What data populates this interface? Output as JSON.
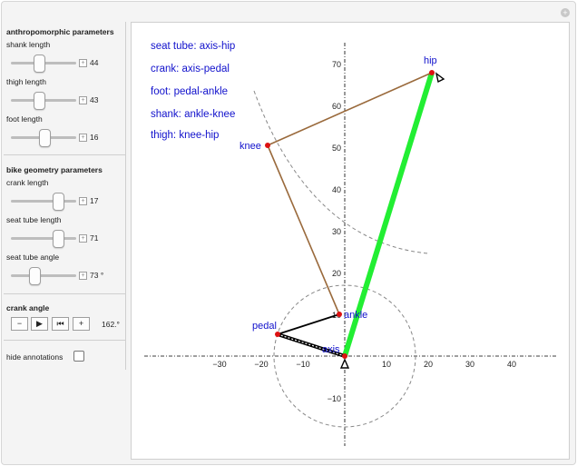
{
  "window": {
    "corner_button_icon": "plus-circle-icon"
  },
  "controls": {
    "anthropomorphic": {
      "heading": "anthropomorphic parameters",
      "items": [
        {
          "label": "shank length",
          "value": "44",
          "fraction": 0.44
        },
        {
          "label": "thigh length",
          "value": "43",
          "fraction": 0.44
        },
        {
          "label": "foot length",
          "value": "16",
          "fraction": 0.52
        }
      ]
    },
    "bike": {
      "heading": "bike geometry parameters",
      "items": [
        {
          "label": "crank length",
          "value": "17",
          "fraction": 0.72
        },
        {
          "label": "seat tube length",
          "value": "71",
          "fraction": 0.72
        },
        {
          "label": "seat tube angle",
          "value": "73 °",
          "fraction": 0.36
        }
      ]
    },
    "crank": {
      "heading": "crank angle",
      "buttons": [
        "−",
        "▶",
        "⏮",
        "+"
      ],
      "value": "162.°"
    },
    "hide_annotations": {
      "label": "hide annotations",
      "checked": false
    }
  },
  "plot": {
    "annotations": [
      "seat tube: axis-hip",
      "crank: axis-pedal",
      "foot: pedal-ankle",
      "shank: ankle-knee",
      "thigh: knee-hip"
    ],
    "x_ticks": [
      "−30",
      "−20",
      "−10",
      "10",
      "20",
      "30",
      "40"
    ],
    "y_ticks": [
      "70",
      "60",
      "50",
      "40",
      "30",
      "20",
      "10",
      "−10"
    ],
    "points": {
      "hip": {
        "label": "hip",
        "x": 21,
        "y": 67.9
      },
      "knee": {
        "label": "knee",
        "x": -18.5,
        "y": 50.6
      },
      "ankle": {
        "label": "ankle",
        "x": -1.2,
        "y": 10
      },
      "pedal": {
        "label": "pedal",
        "x": -16.2,
        "y": 5.3
      },
      "axis": {
        "label": "axis",
        "x": 0,
        "y": 0
      }
    },
    "colors": {
      "seat_tube": "#22ee33",
      "thigh": "#9a6a3c",
      "shank": "#9a6a3c",
      "foot": "#000000",
      "crank": "#000000",
      "joint": "#dd1111",
      "label": "#1111cc"
    }
  }
}
